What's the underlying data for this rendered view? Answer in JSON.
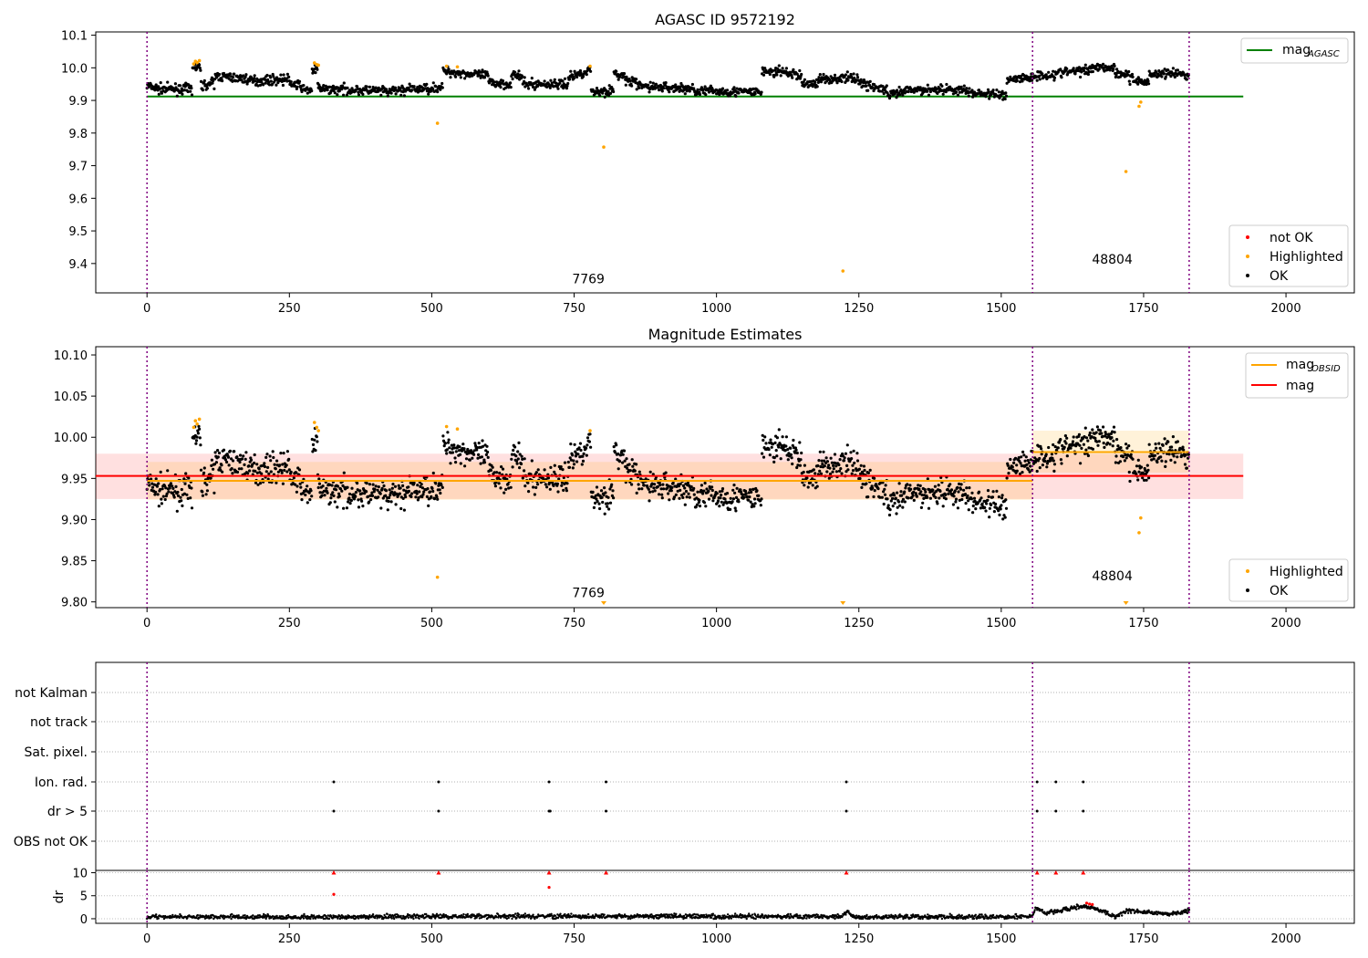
{
  "chart_data": [
    {
      "type": "scatter",
      "title": "AGASC ID 9572192",
      "xlim": [
        -90,
        2120
      ],
      "ylim": [
        9.31,
        10.11
      ],
      "xticks": [
        0,
        250,
        500,
        750,
        1000,
        1250,
        1500,
        1750,
        2000
      ],
      "yticks": [
        9.4,
        9.5,
        9.6,
        9.7,
        9.8,
        9.9,
        10.0,
        10.1
      ],
      "obs_boundaries": [
        0,
        1555,
        1830
      ],
      "obsid_labels": [
        {
          "text": "7769",
          "x": 775,
          "y": 9.34
        },
        {
          "text": "48804",
          "x": 1695,
          "y": 9.4
        }
      ],
      "reference_lines": [
        {
          "name": "mag_AGASC",
          "legend_main": "mag",
          "legend_sub": "AGASC",
          "y": 9.912,
          "x": [
            0,
            1925
          ],
          "color": "#008000"
        }
      ],
      "legend_lines_position": "top-right",
      "legend_points_position": "bottom-right",
      "legend_points": [
        {
          "label": "not OK",
          "color": "#ff0000"
        },
        {
          "label": "Highlighted",
          "color": "#ffa500"
        },
        {
          "label": "OK",
          "color": "#000000"
        }
      ],
      "series": [
        {
          "name": "Highlighted",
          "color": "#ffa500",
          "points": [
            [
              82,
              10.012
            ],
            [
              85,
              10.02
            ],
            [
              88,
              10.016
            ],
            [
              92,
              10.022
            ],
            [
              294,
              10.015
            ],
            [
              298,
              10.01
            ],
            [
              301,
              10.008
            ],
            [
              510,
              9.83
            ],
            [
              526,
              10.005
            ],
            [
              545,
              10.003
            ],
            [
              778,
              10.005
            ],
            [
              802,
              9.757
            ],
            [
              1222,
              9.377
            ],
            [
              1719,
              9.682
            ],
            [
              1742,
              9.882
            ],
            [
              1745,
              9.895
            ]
          ]
        }
      ],
      "segments": [
        [
          0,
          20,
          9.945,
          9.935
        ],
        [
          20,
          80,
          9.935,
          9.935
        ],
        [
          80,
          95,
          10.0,
          10.0
        ],
        [
          95,
          120,
          9.945,
          9.955
        ],
        [
          120,
          180,
          9.975,
          9.965
        ],
        [
          180,
          250,
          9.96,
          9.965
        ],
        [
          250,
          275,
          9.955,
          9.94
        ],
        [
          275,
          290,
          9.93,
          9.935
        ],
        [
          290,
          300,
          9.99,
          9.995
        ],
        [
          300,
          320,
          9.94,
          9.93
        ],
        [
          320,
          400,
          9.935,
          9.93
        ],
        [
          400,
          430,
          9.93,
          9.925
        ],
        [
          430,
          520,
          9.93,
          9.94
        ],
        [
          520,
          600,
          9.99,
          9.975
        ],
        [
          600,
          640,
          9.955,
          9.95
        ],
        [
          640,
          660,
          9.98,
          9.97
        ],
        [
          660,
          740,
          9.95,
          9.95
        ],
        [
          740,
          780,
          9.97,
          9.995
        ],
        [
          780,
          800,
          9.93,
          9.925
        ],
        [
          800,
          820,
          9.93,
          9.93
        ],
        [
          820,
          840,
          9.98,
          9.975
        ],
        [
          840,
          860,
          9.96,
          9.955
        ],
        [
          860,
          960,
          9.945,
          9.935
        ],
        [
          960,
          1080,
          9.93,
          9.925
        ],
        [
          1080,
          1110,
          9.99,
          9.985
        ],
        [
          1110,
          1150,
          9.99,
          9.975
        ],
        [
          1150,
          1180,
          9.95,
          9.955
        ],
        [
          1180,
          1250,
          9.965,
          9.97
        ],
        [
          1250,
          1300,
          9.955,
          9.93
        ],
        [
          1300,
          1330,
          9.915,
          9.925
        ],
        [
          1330,
          1400,
          9.93,
          9.935
        ],
        [
          1400,
          1440,
          9.935,
          9.93
        ],
        [
          1440,
          1510,
          9.925,
          9.915
        ],
        [
          1510,
          1555,
          9.965,
          9.97
        ],
        [
          1555,
          1600,
          9.975,
          9.98
        ],
        [
          1600,
          1660,
          9.985,
          9.995
        ],
        [
          1660,
          1700,
          10.005,
          10.0
        ],
        [
          1700,
          1725,
          9.985,
          9.98
        ],
        [
          1725,
          1760,
          9.965,
          9.955
        ],
        [
          1760,
          1800,
          9.98,
          9.985
        ],
        [
          1800,
          1830,
          9.985,
          9.975
        ]
      ],
      "noise": 0.012
    },
    {
      "type": "scatter",
      "title": "Magnitude Estimates",
      "xlim": [
        -90,
        2120
      ],
      "ylim": [
        9.793,
        10.11
      ],
      "xticks": [
        0,
        250,
        500,
        750,
        1000,
        1250,
        1500,
        1750,
        2000
      ],
      "yticks": [
        9.8,
        9.85,
        9.9,
        9.95,
        10.0,
        10.05,
        10.1
      ],
      "obs_boundaries": [
        0,
        1555,
        1830
      ],
      "obsid_labels": [
        {
          "text": "7769",
          "x": 775,
          "y": 9.806
        },
        {
          "text": "48804",
          "x": 1695,
          "y": 9.826
        }
      ],
      "reference_lines": [
        {
          "name": "mag_OBSID",
          "legend_main": "mag",
          "legend_sub": "OBSID",
          "color": "#ffa500",
          "segments": [
            {
              "x": [
                0,
                1555
              ],
              "y": 9.947,
              "band": [
                9.924,
                9.97
              ]
            },
            {
              "x": [
                1555,
                1830
              ],
              "y": 9.982,
              "band": [
                9.957,
                10.008
              ]
            }
          ]
        },
        {
          "name": "mag",
          "legend_main": "mag",
          "legend_sub": "",
          "color": "#ff0000",
          "segments": [
            {
              "x": [
                -90,
                1925
              ],
              "y": 9.953,
              "band": [
                9.925,
                9.98
              ]
            }
          ]
        }
      ],
      "legend_lines_position": "top-right",
      "legend_points_position": "bottom-right",
      "legend_points": [
        {
          "label": "Highlighted",
          "color": "#ffa500"
        },
        {
          "label": "OK",
          "color": "#000000"
        }
      ],
      "lower_markers": [
        802,
        1222,
        1719
      ],
      "series": [
        {
          "name": "Highlighted",
          "color": "#ffa500",
          "points": [
            [
              82,
              10.012
            ],
            [
              85,
              10.02
            ],
            [
              88,
              10.016
            ],
            [
              92,
              10.022
            ],
            [
              294,
              10.018
            ],
            [
              298,
              10.012
            ],
            [
              301,
              10.008
            ],
            [
              510,
              9.83
            ],
            [
              526,
              10.013
            ],
            [
              545,
              10.01
            ],
            [
              778,
              10.008
            ],
            [
              1742,
              9.884
            ],
            [
              1745,
              9.902
            ]
          ]
        }
      ],
      "segments_ref": 0,
      "noise": 0.014
    },
    {
      "type": "scatter",
      "title": "",
      "xlim": [
        -90,
        2120
      ],
      "flag_rows": [
        "not Kalman",
        "not track",
        "Sat. pixel.",
        "Ion. rad.",
        "dr > 5",
        "OBS not OK"
      ],
      "flag_points": {
        "Ion. rad.": [
          328,
          512,
          706,
          806,
          1228,
          1563,
          1596,
          1644
        ],
        "dr > 5": [
          328,
          512,
          706,
          708,
          806,
          1228,
          1563,
          1596,
          1644
        ]
      },
      "obs_boundaries": [
        0,
        1555,
        1830
      ]
    },
    {
      "type": "scatter",
      "title": "",
      "ylabel": "dr",
      "xlim": [
        -90,
        2120
      ],
      "ylim": [
        -1,
        10.5
      ],
      "xticks": [
        0,
        250,
        500,
        750,
        1000,
        1250,
        1500,
        1750,
        2000
      ],
      "yticks": [
        0,
        5,
        10
      ],
      "obs_boundaries": [
        0,
        1555,
        1830
      ],
      "red_points": [
        [
          328,
          10
        ],
        [
          328,
          5.3
        ],
        [
          512,
          10
        ],
        [
          706,
          10
        ],
        [
          706,
          6.8
        ],
        [
          806,
          10
        ],
        [
          1228,
          10
        ],
        [
          1563,
          10
        ],
        [
          1596,
          10
        ],
        [
          1644,
          10
        ],
        [
          1650,
          3.4
        ],
        [
          1655,
          3.2
        ],
        [
          1660,
          3.1
        ]
      ],
      "dr_profile": [
        [
          0,
          0.4
        ],
        [
          300,
          0.35
        ],
        [
          500,
          0.5
        ],
        [
          750,
          0.55
        ],
        [
          1000,
          0.45
        ],
        [
          1220,
          0.5
        ],
        [
          1230,
          1.5
        ],
        [
          1240,
          0.4
        ],
        [
          1500,
          0.35
        ],
        [
          1555,
          0.5
        ],
        [
          1560,
          2.4
        ],
        [
          1580,
          1.2
        ],
        [
          1620,
          2.3
        ],
        [
          1660,
          2.5
        ],
        [
          1700,
          0.3
        ],
        [
          1720,
          1.8
        ],
        [
          1760,
          1.4
        ],
        [
          1800,
          1.1
        ],
        [
          1830,
          1.8
        ]
      ]
    }
  ],
  "legend_ok": "OK",
  "legend_highlighted": "Highlighted",
  "legend_notok": "not OK"
}
